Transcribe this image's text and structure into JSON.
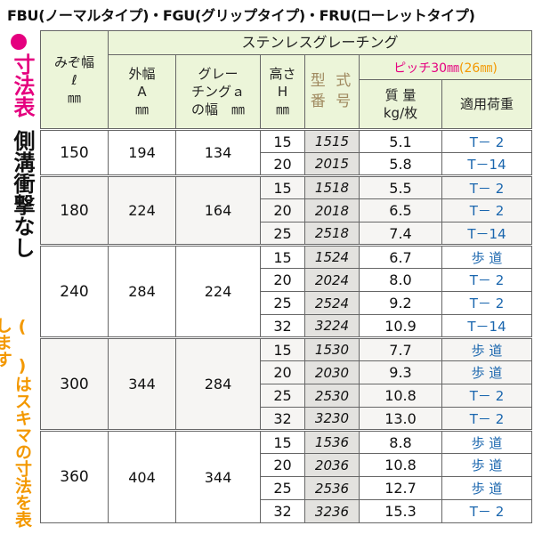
{
  "title": "FBU(ノーマルタイプ)・FGU(グリップタイプ)・FRU(ローレットタイプ)",
  "sidebar": {
    "heading": "寸法表",
    "subheading": "側溝衝撃なし",
    "note": "( )はスキマの寸法を表します"
  },
  "headers": {
    "gutter_width": "みぞ幅\nℓ\n㎜",
    "grating_group": "ステンレスグレーチング",
    "outer_width": "外幅\nA\n㎜",
    "grating_width": "グレー\nチングａ\nの幅　㎜",
    "height": "高さ\nH\n㎜",
    "model": "型 式\n番 号",
    "pitch_main": "ピッチ30㎜",
    "pitch_alt": "(26㎜)",
    "mass": "質 量\nkg/枚",
    "load": "適用荷重"
  },
  "rows": [
    {
      "gutter": "150",
      "outer": "194",
      "grating": "134",
      "items": [
        {
          "h": "15",
          "code": "1515",
          "mass": "5.1",
          "load": "T－ 2"
        },
        {
          "h": "20",
          "code": "2015",
          "mass": "5.8",
          "load": "T－14"
        }
      ]
    },
    {
      "gutter": "180",
      "outer": "224",
      "grating": "164",
      "items": [
        {
          "h": "15",
          "code": "1518",
          "mass": "5.5",
          "load": "T－ 2"
        },
        {
          "h": "20",
          "code": "2018",
          "mass": "6.5",
          "load": "T－ 2"
        },
        {
          "h": "25",
          "code": "2518",
          "mass": "7.4",
          "load": "T－14"
        }
      ]
    },
    {
      "gutter": "240",
      "outer": "284",
      "grating": "224",
      "items": [
        {
          "h": "15",
          "code": "1524",
          "mass": "6.7",
          "load": "歩 道"
        },
        {
          "h": "20",
          "code": "2024",
          "mass": "8.0",
          "load": "T－ 2"
        },
        {
          "h": "25",
          "code": "2524",
          "mass": "9.2",
          "load": "T－ 2"
        },
        {
          "h": "32",
          "code": "3224",
          "mass": "10.9",
          "load": "T－14"
        }
      ]
    },
    {
      "gutter": "300",
      "outer": "344",
      "grating": "284",
      "items": [
        {
          "h": "15",
          "code": "1530",
          "mass": "7.7",
          "load": "歩 道"
        },
        {
          "h": "20",
          "code": "2030",
          "mass": "9.3",
          "load": "歩 道"
        },
        {
          "h": "25",
          "code": "2530",
          "mass": "10.8",
          "load": "T－ 2"
        },
        {
          "h": "32",
          "code": "3230",
          "mass": "13.0",
          "load": "T－ 2"
        }
      ]
    },
    {
      "gutter": "360",
      "outer": "404",
      "grating": "344",
      "items": [
        {
          "h": "15",
          "code": "1536",
          "mass": "8.8",
          "load": "歩 道"
        },
        {
          "h": "20",
          "code": "2036",
          "mass": "10.8",
          "load": "歩 道"
        },
        {
          "h": "25",
          "code": "2536",
          "mass": "12.7",
          "load": "歩 道"
        },
        {
          "h": "32",
          "code": "3236",
          "mass": "15.3",
          "load": "T－ 2"
        }
      ]
    }
  ]
}
